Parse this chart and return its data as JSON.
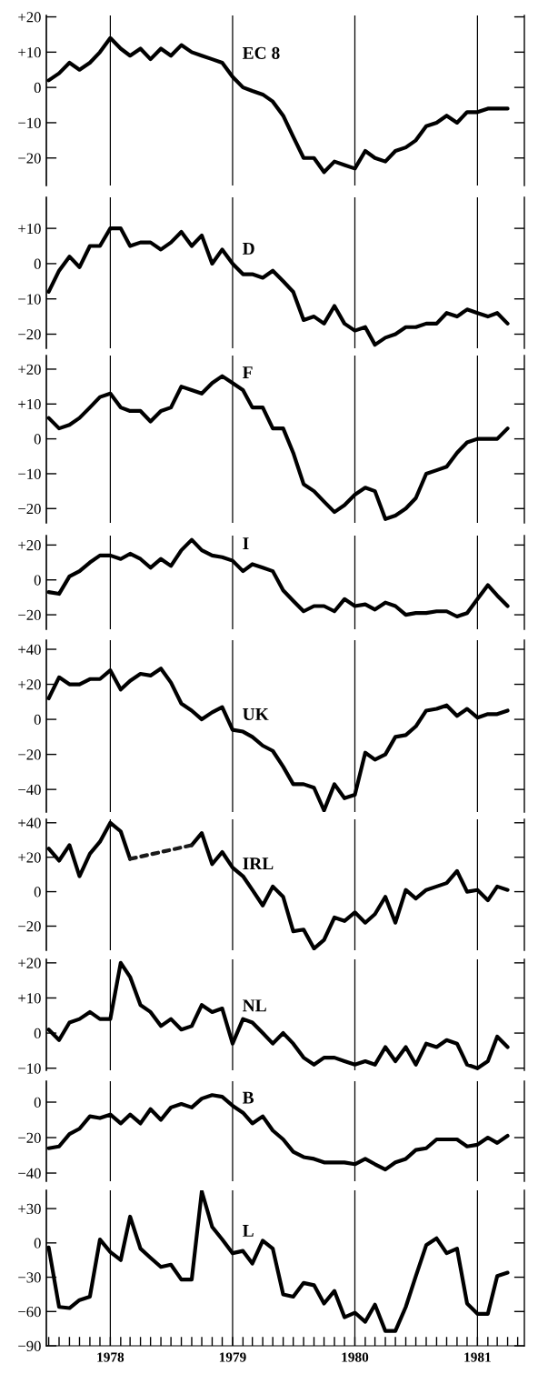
{
  "chart_data": [
    {
      "type": "line",
      "title": "EC 8",
      "tick_labels": "y",
      "x": [
        "1977-07",
        "1977-08",
        "1977-09",
        "1977-10",
        "1977-11",
        "1977-12",
        "1978-01",
        "1978-02",
        "1978-03",
        "1978-04",
        "1978-05",
        "1978-06",
        "1978-07",
        "1978-08",
        "1978-09",
        "1978-10",
        "1978-11",
        "1978-12",
        "1979-01",
        "1979-02",
        "1979-03",
        "1979-04",
        "1979-05",
        "1979-06",
        "1979-07",
        "1979-08",
        "1979-09",
        "1979-10",
        "1979-11",
        "1979-12",
        "1980-01",
        "1980-02",
        "1980-03",
        "1980-04",
        "1980-05",
        "1980-06",
        "1980-07",
        "1980-08",
        "1980-09",
        "1980-10",
        "1980-11",
        "1980-12",
        "1981-01",
        "1981-02",
        "1981-03",
        "1981-04"
      ],
      "series": [
        {
          "color": "#000000",
          "values": [
            2,
            4,
            7,
            5,
            7,
            10,
            14,
            11,
            9,
            11,
            8,
            11,
            9,
            12,
            10,
            9,
            8,
            7,
            3,
            0,
            -1,
            -2,
            -4,
            -8,
            -14,
            -20,
            -20,
            -24,
            -21,
            -22,
            -23,
            -18,
            -20,
            -21,
            -18,
            -17,
            -15,
            -11,
            -10,
            -8,
            -10,
            -7,
            -7,
            -6,
            -6,
            -6
          ]
        }
      ],
      "xlim": [
        "1977-06-24",
        "1981-05-21"
      ],
      "ylim": [
        -27.8,
        20.4
      ],
      "yticks": [
        {
          "value": 20,
          "label": "+20"
        },
        {
          "value": 10,
          "label": "+10"
        },
        0,
        {
          "value": -10,
          "label": "−10"
        },
        {
          "value": -20,
          "label": "−20"
        }
      ],
      "ref_lines": [
        {
          "axis": "x",
          "value": "1978-01",
          "color": "#000000"
        },
        {
          "axis": "x",
          "value": "1979-01",
          "color": "#000000"
        },
        {
          "axis": "x",
          "value": "1980-01",
          "color": "#000000"
        },
        {
          "axis": "x",
          "value": "1981-01",
          "color": "#000000"
        }
      ]
    },
    {
      "type": "line",
      "title": "D",
      "tick_labels": "y",
      "x": [
        "1977-07",
        "1977-08",
        "1977-09",
        "1977-10",
        "1977-11",
        "1977-12",
        "1978-01",
        "1978-02",
        "1978-03",
        "1978-04",
        "1978-05",
        "1978-06",
        "1978-07",
        "1978-08",
        "1978-09",
        "1978-10",
        "1978-11",
        "1978-12",
        "1979-01",
        "1979-02",
        "1979-03",
        "1979-04",
        "1979-05",
        "1979-06",
        "1979-07",
        "1979-08",
        "1979-09",
        "1979-10",
        "1979-11",
        "1979-12",
        "1980-01",
        "1980-02",
        "1980-03",
        "1980-04",
        "1980-05",
        "1980-06",
        "1980-07",
        "1980-08",
        "1980-09",
        "1980-10",
        "1980-11",
        "1980-12",
        "1981-01",
        "1981-02",
        "1981-03",
        "1981-04"
      ],
      "series": [
        {
          "color": "#000000",
          "values": [
            -8,
            -2,
            2,
            -1,
            5,
            5,
            10,
            10,
            5,
            6,
            6,
            4,
            6,
            9,
            5,
            8,
            0,
            4,
            0,
            -3,
            -3,
            -4,
            -2,
            -5,
            -8,
            -16,
            -15,
            -17,
            -12,
            -17,
            -19,
            -18,
            -23,
            -21,
            -20,
            -18,
            -18,
            -17,
            -17,
            -14,
            -15,
            -13,
            -14,
            -15,
            -14,
            -17
          ]
        }
      ],
      "xlim": [
        "1977-06-24",
        "1981-05-21"
      ],
      "ylim": [
        -24,
        18.8
      ],
      "yticks": [
        {
          "value": 10,
          "label": "+10"
        },
        0,
        {
          "value": -10,
          "label": "−10"
        },
        {
          "value": -20,
          "label": "−20"
        }
      ],
      "ref_lines": [
        {
          "axis": "x",
          "value": "1978-01",
          "color": "#000000"
        },
        {
          "axis": "x",
          "value": "1979-01",
          "color": "#000000"
        },
        {
          "axis": "x",
          "value": "1980-01",
          "color": "#000000"
        },
        {
          "axis": "x",
          "value": "1981-01",
          "color": "#000000"
        }
      ]
    },
    {
      "type": "line",
      "title": "F",
      "tick_labels": "y",
      "x": [
        "1977-07",
        "1977-08",
        "1977-09",
        "1977-10",
        "1977-11",
        "1977-12",
        "1978-01",
        "1978-02",
        "1978-03",
        "1978-04",
        "1978-05",
        "1978-06",
        "1978-07",
        "1978-08",
        "1978-09",
        "1978-10",
        "1978-11",
        "1978-12",
        "1979-01",
        "1979-02",
        "1979-03",
        "1979-04",
        "1979-05",
        "1979-06",
        "1979-07",
        "1979-08",
        "1979-09",
        "1979-10",
        "1979-11",
        "1979-12",
        "1980-01",
        "1980-02",
        "1980-03",
        "1980-04",
        "1980-05",
        "1980-06",
        "1980-07",
        "1980-08",
        "1980-09",
        "1980-10",
        "1980-11",
        "1980-12",
        "1981-01",
        "1981-02",
        "1981-03",
        "1981-04"
      ],
      "series": [
        {
          "color": "#000000",
          "values": [
            6,
            3,
            4,
            6,
            9,
            12,
            13,
            9,
            8,
            8,
            5,
            8,
            9,
            15,
            14,
            13,
            16,
            18,
            16,
            14,
            9,
            9,
            3,
            3,
            -4,
            -13,
            -15,
            -18,
            -21,
            -19,
            -16,
            -14,
            -15,
            -23,
            -22,
            -20,
            -17,
            -10,
            -9,
            -8,
            -4,
            -1,
            0,
            0,
            0,
            3
          ]
        }
      ],
      "xlim": [
        "1977-06-24",
        "1981-05-21"
      ],
      "ylim": [
        -24.1,
        23.9
      ],
      "yticks": [
        {
          "value": 20,
          "label": "+20"
        },
        {
          "value": 10,
          "label": "+10"
        },
        0,
        {
          "value": -10,
          "label": "−10"
        },
        {
          "value": -20,
          "label": "−20"
        }
      ],
      "ref_lines": [
        {
          "axis": "x",
          "value": "1978-01",
          "color": "#000000"
        },
        {
          "axis": "x",
          "value": "1979-01",
          "color": "#000000"
        },
        {
          "axis": "x",
          "value": "1980-01",
          "color": "#000000"
        },
        {
          "axis": "x",
          "value": "1981-01",
          "color": "#000000"
        }
      ]
    },
    {
      "type": "line",
      "title": "I",
      "tick_labels": "y",
      "x": [
        "1977-07",
        "1977-08",
        "1977-09",
        "1977-10",
        "1977-11",
        "1977-12",
        "1978-01",
        "1978-02",
        "1978-03",
        "1978-04",
        "1978-05",
        "1978-06",
        "1978-07",
        "1978-08",
        "1978-09",
        "1978-10",
        "1978-11",
        "1978-12",
        "1979-01",
        "1979-02",
        "1979-03",
        "1979-04",
        "1979-05",
        "1979-06",
        "1979-07",
        "1979-08",
        "1979-09",
        "1979-10",
        "1979-11",
        "1979-12",
        "1980-01",
        "1980-02",
        "1980-03",
        "1980-04",
        "1980-05",
        "1980-06",
        "1980-07",
        "1980-08",
        "1980-09",
        "1980-10",
        "1980-11",
        "1980-12",
        "1981-01",
        "1981-02",
        "1981-03",
        "1981-04"
      ],
      "series": [
        {
          "color": "#000000",
          "values": [
            -7,
            -8,
            2,
            5,
            10,
            14,
            14,
            12,
            15,
            12,
            7,
            12,
            8,
            17,
            23,
            17,
            14,
            13,
            11,
            5,
            9,
            7,
            5,
            -6,
            -12,
            -18,
            -15,
            -15,
            -18,
            -11,
            -15,
            -14,
            -17,
            -13,
            -15,
            -20,
            -19,
            -19,
            -18,
            -18,
            -21,
            -19,
            -11,
            -3,
            -9,
            -15
          ]
        }
      ],
      "xlim": [
        "1977-06-24",
        "1981-05-21"
      ],
      "ylim": [
        -28.3,
        25.4
      ],
      "yticks": [
        {
          "value": 20,
          "label": "+20"
        },
        0,
        {
          "value": -20,
          "label": "−20"
        }
      ],
      "ref_lines": [
        {
          "axis": "x",
          "value": "1978-01",
          "color": "#000000"
        },
        {
          "axis": "x",
          "value": "1979-01",
          "color": "#000000"
        },
        {
          "axis": "x",
          "value": "1980-01",
          "color": "#000000"
        },
        {
          "axis": "x",
          "value": "1981-01",
          "color": "#000000"
        }
      ]
    },
    {
      "type": "line",
      "title": "UK",
      "tick_labels": "y",
      "x": [
        "1977-07",
        "1977-08",
        "1977-09",
        "1977-10",
        "1977-11",
        "1977-12",
        "1978-01",
        "1978-02",
        "1978-03",
        "1978-04",
        "1978-05",
        "1978-06",
        "1978-07",
        "1978-08",
        "1978-09",
        "1978-10",
        "1978-11",
        "1978-12",
        "1979-01",
        "1979-02",
        "1979-03",
        "1979-04",
        "1979-05",
        "1979-06",
        "1979-07",
        "1979-08",
        "1979-09",
        "1979-10",
        "1979-11",
        "1979-12",
        "1980-01",
        "1980-02",
        "1980-03",
        "1980-04",
        "1980-05",
        "1980-06",
        "1980-07",
        "1980-08",
        "1980-09",
        "1980-10",
        "1980-11",
        "1980-12",
        "1981-01",
        "1981-02",
        "1981-03",
        "1981-04"
      ],
      "series": [
        {
          "color": "#000000",
          "values": [
            12,
            24,
            20,
            20,
            23,
            23,
            28,
            17,
            22,
            26,
            25,
            29,
            21,
            9,
            5,
            0,
            4,
            7,
            -6,
            -7,
            -10,
            -15,
            -18,
            -27,
            -37,
            -37,
            -39,
            -52,
            -37,
            -45,
            -43,
            -19,
            -23,
            -20,
            -10,
            -9,
            -4,
            5,
            6,
            8,
            2,
            6,
            1,
            3,
            3,
            5
          ]
        }
      ],
      "xlim": [
        "1977-06-24",
        "1981-05-21"
      ],
      "ylim": [
        -52.9,
        45.2
      ],
      "yticks": [
        {
          "value": 40,
          "label": "+40"
        },
        {
          "value": 20,
          "label": "+20"
        },
        0,
        {
          "value": -20,
          "label": "−20"
        },
        {
          "value": -40,
          "label": "−40"
        }
      ],
      "ref_lines": [
        {
          "axis": "x",
          "value": "1978-01",
          "color": "#000000"
        },
        {
          "axis": "x",
          "value": "1979-01",
          "color": "#000000"
        },
        {
          "axis": "x",
          "value": "1980-01",
          "color": "#000000"
        },
        {
          "axis": "x",
          "value": "1981-01",
          "color": "#000000"
        }
      ]
    },
    {
      "type": "line",
      "title": "IRL",
      "tick_labels": "y",
      "x": [
        "1977-07",
        "1977-08",
        "1977-09",
        "1977-10",
        "1977-11",
        "1977-12",
        "1978-01",
        "1978-02",
        "1978-03",
        "1978-04",
        "1978-05",
        "1978-06",
        "1978-07",
        "1978-08",
        "1978-09",
        "1978-10",
        "1978-11",
        "1978-12",
        "1979-01",
        "1979-02",
        "1979-03",
        "1979-04",
        "1979-05",
        "1979-06",
        "1979-07",
        "1979-08",
        "1979-09",
        "1979-10",
        "1979-11",
        "1979-12",
        "1980-01",
        "1980-02",
        "1980-03",
        "1980-04",
        "1980-05",
        "1980-06",
        "1980-07",
        "1980-08",
        "1980-09",
        "1980-10",
        "1980-11",
        "1980-12",
        "1981-01",
        "1981-02",
        "1981-03",
        "1981-04"
      ],
      "series": [
        {
          "color": "#000000",
          "values": [
            25,
            18,
            27,
            9,
            22,
            29,
            40,
            35,
            19,
            null,
            null,
            null,
            null,
            null,
            27,
            34,
            16,
            23,
            14,
            9,
            1,
            -8,
            3,
            -3,
            -23,
            -22,
            -33,
            -28,
            -15,
            -17,
            -12,
            -18,
            -13,
            -3,
            -18,
            1,
            -4,
            1,
            3,
            5,
            12,
            0,
            1,
            -5,
            3,
            1
          ]
        },
        {
          "color": "#1a1a1a",
          "line_style": "dashed",
          "x": [
            "1978-03",
            "1978-09"
          ],
          "values": [
            19,
            27
          ]
        }
      ],
      "xlim": [
        "1977-06-24",
        "1981-05-21"
      ],
      "ylim": [
        -34,
        42
      ],
      "yticks": [
        {
          "value": 40,
          "label": "+40"
        },
        {
          "value": 20,
          "label": "+20"
        },
        0,
        {
          "value": -20,
          "label": "−20"
        }
      ],
      "ref_lines": [
        {
          "axis": "x",
          "value": "1978-01",
          "color": "#000000"
        },
        {
          "axis": "x",
          "value": "1979-01",
          "color": "#000000"
        },
        {
          "axis": "x",
          "value": "1980-01",
          "color": "#000000"
        },
        {
          "axis": "x",
          "value": "1981-01",
          "color": "#000000"
        }
      ]
    },
    {
      "type": "line",
      "title": "NL",
      "tick_labels": "y",
      "x": [
        "1977-07",
        "1977-08",
        "1977-09",
        "1977-10",
        "1977-11",
        "1977-12",
        "1978-01",
        "1978-02",
        "1978-03",
        "1978-04",
        "1978-05",
        "1978-06",
        "1978-07",
        "1978-08",
        "1978-09",
        "1978-10",
        "1978-11",
        "1978-12",
        "1979-01",
        "1979-02",
        "1979-03",
        "1979-04",
        "1979-05",
        "1979-06",
        "1979-07",
        "1979-08",
        "1979-09",
        "1979-10",
        "1979-11",
        "1979-12",
        "1980-01",
        "1980-02",
        "1980-03",
        "1980-04",
        "1980-05",
        "1980-06",
        "1980-07",
        "1980-08",
        "1980-09",
        "1980-10",
        "1980-11",
        "1980-12",
        "1981-01",
        "1981-02",
        "1981-03",
        "1981-04"
      ],
      "series": [
        {
          "color": "#000000",
          "values": [
            1,
            -2,
            3,
            4,
            6,
            4,
            4,
            20,
            16,
            8,
            6,
            2,
            4,
            1,
            2,
            8,
            6,
            7,
            -3,
            4,
            3,
            0,
            -3,
            0,
            -3,
            -7,
            -9,
            -7,
            -7,
            -8,
            -9,
            -8,
            -9,
            -4,
            -8,
            -4,
            -9,
            -3,
            -4,
            -2,
            -3,
            -9,
            -10,
            -8,
            -1,
            -4
          ]
        }
      ],
      "xlim": [
        "1977-06-24",
        "1981-05-21"
      ],
      "ylim": [
        -10.6,
        21
      ],
      "yticks": [
        {
          "value": 20,
          "label": "+20"
        },
        {
          "value": 10,
          "label": "+10"
        },
        0,
        {
          "value": -10,
          "label": "−10"
        }
      ],
      "ref_lines": [
        {
          "axis": "x",
          "value": "1978-01",
          "color": "#000000"
        },
        {
          "axis": "x",
          "value": "1979-01",
          "color": "#000000"
        },
        {
          "axis": "x",
          "value": "1980-01",
          "color": "#000000"
        },
        {
          "axis": "x",
          "value": "1981-01",
          "color": "#000000"
        }
      ]
    },
    {
      "type": "line",
      "title": "B",
      "tick_labels": "y",
      "x": [
        "1977-07",
        "1977-08",
        "1977-09",
        "1977-10",
        "1977-11",
        "1977-12",
        "1978-01",
        "1978-02",
        "1978-03",
        "1978-04",
        "1978-05",
        "1978-06",
        "1978-07",
        "1978-08",
        "1978-09",
        "1978-10",
        "1978-11",
        "1978-12",
        "1979-01",
        "1979-02",
        "1979-03",
        "1979-04",
        "1979-05",
        "1979-06",
        "1979-07",
        "1979-08",
        "1979-09",
        "1979-10",
        "1979-11",
        "1979-12",
        "1980-01",
        "1980-02",
        "1980-03",
        "1980-04",
        "1980-05",
        "1980-06",
        "1980-07",
        "1980-08",
        "1980-09",
        "1980-10",
        "1980-11",
        "1980-12",
        "1981-01",
        "1981-02",
        "1981-03",
        "1981-04"
      ],
      "series": [
        {
          "color": "#000000",
          "values": [
            -26,
            -25,
            -18,
            -15,
            -8,
            -9,
            -7,
            -12,
            -7,
            -12,
            -4,
            -10,
            -3,
            -1,
            -3,
            2,
            4,
            3,
            -2,
            -6,
            -12,
            -8,
            -16,
            -21,
            -28,
            -31,
            -32,
            -34,
            -34,
            -34,
            -35,
            -32,
            -35,
            -38,
            -34,
            -32,
            -27,
            -26,
            -21,
            -21,
            -21,
            -25,
            -24,
            -20,
            -23,
            -19
          ]
        }
      ],
      "xlim": [
        "1977-06-24",
        "1981-05-21"
      ],
      "ylim": [
        -44.6,
        11.8
      ],
      "yticks": [
        0,
        {
          "value": -20,
          "label": "−20"
        },
        {
          "value": -40,
          "label": "−40"
        }
      ],
      "ref_lines": [
        {
          "axis": "x",
          "value": "1978-01",
          "color": "#000000"
        },
        {
          "axis": "x",
          "value": "1979-01",
          "color": "#000000"
        },
        {
          "axis": "x",
          "value": "1980-01",
          "color": "#000000"
        },
        {
          "axis": "x",
          "value": "1981-01",
          "color": "#000000"
        }
      ]
    },
    {
      "type": "line",
      "title": "L",
      "x": [
        "1977-07",
        "1977-08",
        "1977-09",
        "1977-10",
        "1977-11",
        "1977-12",
        "1978-01",
        "1978-02",
        "1978-03",
        "1978-04",
        "1978-05",
        "1978-06",
        "1978-07",
        "1978-08",
        "1978-09",
        "1978-10",
        "1978-11",
        "1978-12",
        "1979-01",
        "1979-02",
        "1979-03",
        "1979-04",
        "1979-05",
        "1979-06",
        "1979-07",
        "1979-08",
        "1979-09",
        "1979-10",
        "1979-11",
        "1979-12",
        "1980-01",
        "1980-02",
        "1980-03",
        "1980-04",
        "1980-05",
        "1980-06",
        "1980-07",
        "1980-08",
        "1980-09",
        "1980-10",
        "1980-11",
        "1980-12",
        "1981-01",
        "1981-02",
        "1981-03",
        "1981-04"
      ],
      "series": [
        {
          "color": "#000000",
          "values": [
            -4,
            -56,
            -57,
            -50,
            -47,
            3,
            -8,
            -15,
            23,
            -5,
            -13,
            -21,
            -19,
            -32,
            -32,
            45,
            14,
            3,
            -9,
            -7,
            -18,
            2,
            -5,
            -45,
            -47,
            -35,
            -37,
            -53,
            -42,
            -65,
            -61,
            -69,
            -54,
            -77,
            -77,
            -56,
            -29,
            -2,
            4,
            -9,
            -5,
            -53,
            -62,
            -62,
            -29,
            -26
          ]
        }
      ],
      "xlim": [
        "1977-06-24",
        "1981-05-21"
      ],
      "ylim": [
        -90,
        46
      ],
      "xticks": [
        {
          "value": "1977-07",
          "label": null
        },
        {
          "value": "1977-08",
          "label": null
        },
        {
          "value": "1977-09",
          "label": null
        },
        {
          "value": "1977-10",
          "label": null
        },
        {
          "value": "1977-11",
          "label": null
        },
        {
          "value": "1977-12",
          "label": null
        },
        {
          "value": "1978-01",
          "label": "1978"
        },
        {
          "value": "1978-02",
          "label": null
        },
        {
          "value": "1978-03",
          "label": null
        },
        {
          "value": "1978-04",
          "label": null
        },
        {
          "value": "1978-05",
          "label": null
        },
        {
          "value": "1978-06",
          "label": null
        },
        {
          "value": "1978-07",
          "label": null
        },
        {
          "value": "1978-08",
          "label": null
        },
        {
          "value": "1978-09",
          "label": null
        },
        {
          "value": "1978-10",
          "label": null
        },
        {
          "value": "1978-11",
          "label": null
        },
        {
          "value": "1978-12",
          "label": null
        },
        {
          "value": "1979-01",
          "label": "1979"
        },
        {
          "value": "1979-02",
          "label": null
        },
        {
          "value": "1979-03",
          "label": null
        },
        {
          "value": "1979-04",
          "label": null
        },
        {
          "value": "1979-05",
          "label": null
        },
        {
          "value": "1979-06",
          "label": null
        },
        {
          "value": "1979-07",
          "label": null
        },
        {
          "value": "1979-08",
          "label": null
        },
        {
          "value": "1979-09",
          "label": null
        },
        {
          "value": "1979-10",
          "label": null
        },
        {
          "value": "1979-11",
          "label": null
        },
        {
          "value": "1979-12",
          "label": null
        },
        {
          "value": "1980-01",
          "label": "1980"
        },
        {
          "value": "1980-02",
          "label": null
        },
        {
          "value": "1980-03",
          "label": null
        },
        {
          "value": "1980-04",
          "label": null
        },
        {
          "value": "1980-05",
          "label": null
        },
        {
          "value": "1980-06",
          "label": null
        },
        {
          "value": "1980-07",
          "label": null
        },
        {
          "value": "1980-08",
          "label": null
        },
        {
          "value": "1980-09",
          "label": null
        },
        {
          "value": "1980-10",
          "label": null
        },
        {
          "value": "1980-11",
          "label": null
        },
        {
          "value": "1980-12",
          "label": null
        },
        {
          "value": "1981-01",
          "label": "1981"
        },
        {
          "value": "1981-02",
          "label": null
        },
        {
          "value": "1981-03",
          "label": null
        },
        {
          "value": "1981-04",
          "label": null
        },
        {
          "value": "1981-05",
          "label": null
        }
      ],
      "yticks": [
        {
          "value": 30,
          "label": "+30"
        },
        0,
        {
          "value": -30,
          "label": "−30"
        },
        {
          "value": -60,
          "label": "−60"
        },
        {
          "value": -90,
          "label": "−90"
        }
      ],
      "ref_lines": [
        {
          "axis": "x",
          "value": "1978-01",
          "color": "#000000"
        },
        {
          "axis": "x",
          "value": "1979-01",
          "color": "#000000"
        },
        {
          "axis": "x",
          "value": "1980-01",
          "color": "#000000"
        },
        {
          "axis": "x",
          "value": "1981-01",
          "color": "#000000"
        }
      ]
    }
  ]
}
